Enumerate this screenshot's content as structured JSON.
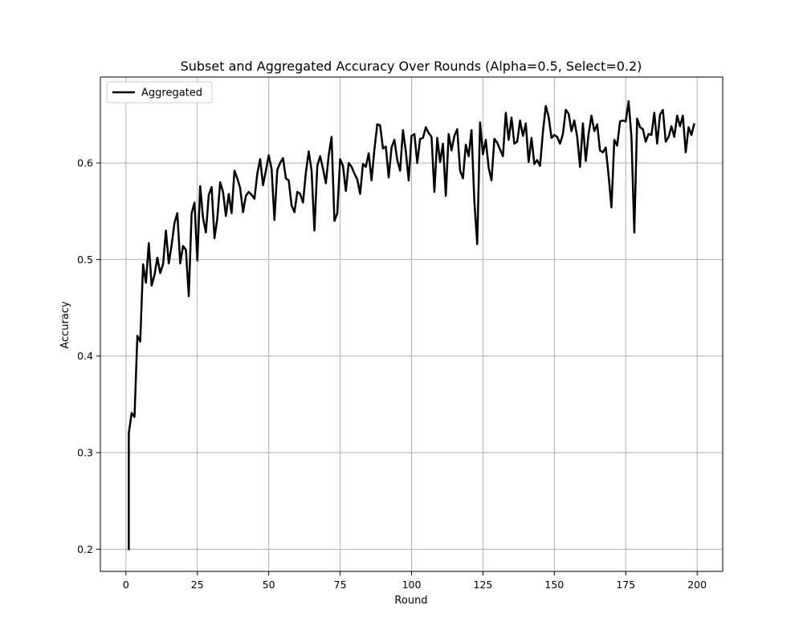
{
  "chart_data": {
    "type": "line",
    "title": "Subset and Aggregated Accuracy Over Rounds (Alpha=0.5, Select=0.2)",
    "xlabel": "Round",
    "ylabel": "Accuracy",
    "xlim": [
      -8.95,
      208.95
    ],
    "ylim": [
      0.177,
      0.689
    ],
    "xticks": [
      0,
      25,
      50,
      75,
      100,
      125,
      150,
      175,
      200
    ],
    "xtick_labels": [
      "0",
      "25",
      "50",
      "75",
      "100",
      "125",
      "150",
      "175",
      "200"
    ],
    "yticks": [
      0.2,
      0.3,
      0.4,
      0.5,
      0.6
    ],
    "ytick_labels": [
      "0.2",
      "0.3",
      "0.4",
      "0.5",
      "0.6"
    ],
    "grid": true,
    "legend": {
      "position": "top-left",
      "entries": [
        "Aggregated"
      ]
    },
    "series": [
      {
        "name": "Aggregated",
        "color": "#000000",
        "x": [
          1,
          1,
          2,
          3,
          4,
          5,
          6,
          7,
          8,
          9,
          10,
          11,
          12,
          13,
          14,
          15,
          16,
          17,
          18,
          19,
          20,
          21,
          22,
          23,
          24,
          25,
          26,
          27,
          28,
          29,
          30,
          31,
          32,
          33,
          34,
          35,
          36,
          37,
          38,
          39,
          40,
          41,
          42,
          43,
          44,
          45,
          46,
          47,
          48,
          49,
          50,
          51,
          52,
          53,
          54,
          55,
          56,
          57,
          58,
          59,
          60,
          61,
          62,
          63,
          64,
          65,
          66,
          67,
          68,
          69,
          70,
          71,
          72,
          73,
          74,
          75,
          76,
          77,
          78,
          79,
          80,
          81,
          82,
          83,
          84,
          85,
          86,
          87,
          88,
          89,
          90,
          91,
          92,
          93,
          94,
          95,
          96,
          97,
          98,
          99,
          100,
          101,
          102,
          103,
          104,
          105,
          106,
          107,
          108,
          109,
          110,
          111,
          112,
          113,
          114,
          115,
          116,
          117,
          118,
          119,
          120,
          121,
          122,
          123,
          124,
          125,
          126,
          127,
          128,
          129,
          130,
          131,
          132,
          133,
          134,
          135,
          136,
          137,
          138,
          139,
          140,
          141,
          142,
          143,
          144,
          145,
          146,
          147,
          148,
          149,
          150,
          151,
          152,
          153,
          154,
          155,
          156,
          157,
          158,
          159,
          160,
          161,
          162,
          163,
          164,
          165,
          166,
          167,
          168,
          169,
          170,
          171,
          172,
          173,
          174,
          175,
          176,
          177,
          178,
          179,
          180,
          181,
          182,
          183,
          184,
          185,
          186,
          187,
          188,
          189,
          190,
          191,
          192,
          193,
          194,
          195,
          196,
          197,
          198,
          199
        ],
        "values": [
          0.199,
          0.32,
          0.341,
          0.337,
          0.421,
          0.415,
          0.495,
          0.476,
          0.517,
          0.473,
          0.484,
          0.502,
          0.486,
          0.495,
          0.53,
          0.496,
          0.515,
          0.538,
          0.548,
          0.496,
          0.514,
          0.51,
          0.462,
          0.548,
          0.559,
          0.499,
          0.576,
          0.543,
          0.528,
          0.567,
          0.575,
          0.522,
          0.543,
          0.58,
          0.57,
          0.545,
          0.568,
          0.548,
          0.592,
          0.584,
          0.574,
          0.549,
          0.566,
          0.57,
          0.567,
          0.563,
          0.589,
          0.604,
          0.577,
          0.592,
          0.608,
          0.594,
          0.541,
          0.593,
          0.6,
          0.605,
          0.584,
          0.582,
          0.556,
          0.549,
          0.57,
          0.568,
          0.559,
          0.59,
          0.612,
          0.592,
          0.53,
          0.597,
          0.607,
          0.594,
          0.579,
          0.608,
          0.627,
          0.54,
          0.548,
          0.604,
          0.597,
          0.571,
          0.6,
          0.596,
          0.589,
          0.583,
          0.568,
          0.599,
          0.596,
          0.61,
          0.582,
          0.614,
          0.64,
          0.639,
          0.615,
          0.617,
          0.585,
          0.616,
          0.624,
          0.603,
          0.592,
          0.634,
          0.612,
          0.582,
          0.628,
          0.63,
          0.6,
          0.625,
          0.626,
          0.637,
          0.631,
          0.627,
          0.57,
          0.626,
          0.601,
          0.62,
          0.566,
          0.63,
          0.613,
          0.628,
          0.635,
          0.592,
          0.584,
          0.619,
          0.607,
          0.634,
          0.56,
          0.516,
          0.642,
          0.609,
          0.624,
          0.595,
          0.582,
          0.625,
          0.621,
          0.614,
          0.607,
          0.652,
          0.624,
          0.647,
          0.62,
          0.622,
          0.644,
          0.628,
          0.641,
          0.601,
          0.626,
          0.599,
          0.603,
          0.597,
          0.632,
          0.659,
          0.648,
          0.626,
          0.629,
          0.627,
          0.62,
          0.63,
          0.655,
          0.651,
          0.633,
          0.644,
          0.627,
          0.596,
          0.641,
          0.602,
          0.63,
          0.649,
          0.633,
          0.64,
          0.613,
          0.611,
          0.616,
          0.587,
          0.554,
          0.624,
          0.618,
          0.643,
          0.644,
          0.643,
          0.664,
          0.627,
          0.528,
          0.646,
          0.637,
          0.635,
          0.622,
          0.63,
          0.629,
          0.652,
          0.62,
          0.65,
          0.655,
          0.622,
          0.627,
          0.638,
          0.627,
          0.649,
          0.638,
          0.649,
          0.611,
          0.637,
          0.629,
          0.641
        ]
      }
    ]
  }
}
